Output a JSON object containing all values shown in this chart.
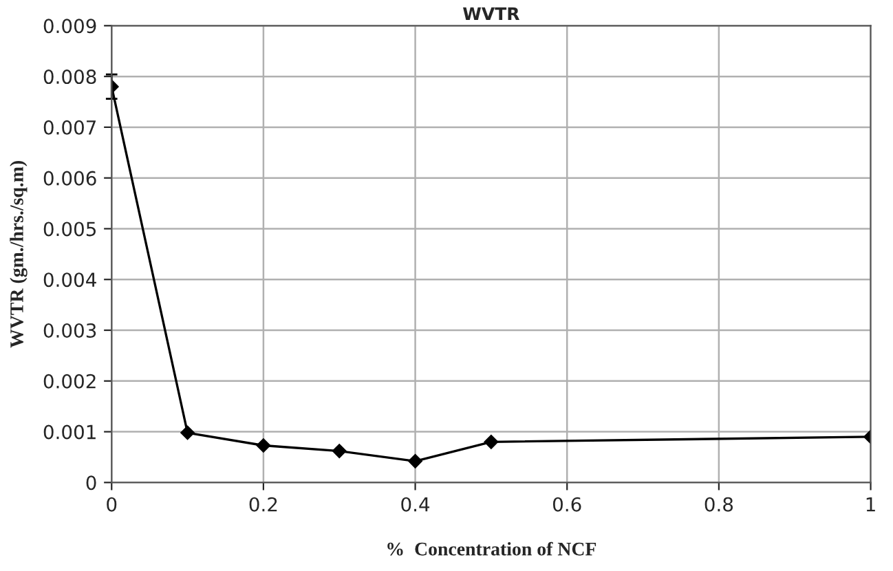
{
  "chart_data": {
    "type": "line",
    "title": "WVTR",
    "xlabel": "%  Concentration of NCF",
    "ylabel": "WVTR (gm./hrs./sq.m)",
    "x": [
      0,
      0.1,
      0.2,
      0.3,
      0.4,
      0.5,
      1
    ],
    "series": [
      {
        "color": "#000000",
        "values": [
          0.0078,
          0.00098,
          0.00073,
          0.00062,
          0.00042,
          0.0008,
          0.0009
        ],
        "errors": [
          0.00024,
          null,
          null,
          null,
          null,
          null,
          null
        ]
      }
    ],
    "xlim": [
      0,
      1
    ],
    "xticks": [
      0,
      0.2,
      0.4,
      0.6,
      0.8,
      1
    ],
    "ylim": [
      0,
      0.009
    ],
    "yticks": [
      0,
      0.001,
      0.002,
      0.003,
      0.004,
      0.005,
      0.006,
      0.007,
      0.008,
      0.009
    ],
    "grid": true,
    "marker": "diamond",
    "line_style": "solid"
  }
}
